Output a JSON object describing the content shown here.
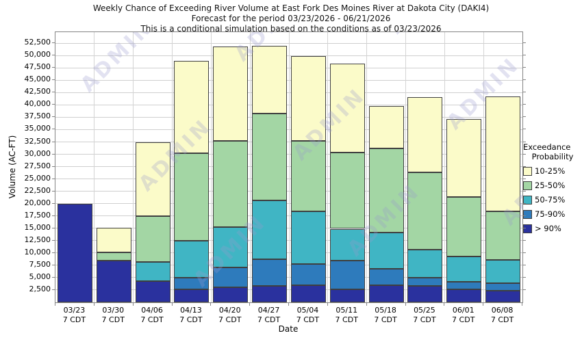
{
  "title": {
    "line1": "Weekly Chance of Exceeding River Volume at East Fork Des Moines River at Dakota City (DAKI4)",
    "line2": "Forecast for the period 03/23/2026 - 06/21/2026",
    "line3": "This is a conditional simulation based on the conditions as of 03/23/2026"
  },
  "axes": {
    "y_label": "Volume (AC-FT)",
    "x_label": "Date",
    "x_sublabel": "7 CDT"
  },
  "legend": {
    "title_line1": "Exceedance",
    "title_line2": "Probability",
    "items": [
      {
        "label": "10-25%",
        "color": "#fbfbc9"
      },
      {
        "label": "25-50%",
        "color": "#a3d6a4"
      },
      {
        "label": "50-75%",
        "color": "#40b5c4"
      },
      {
        "label": "75-90%",
        "color": "#2e7bbc"
      },
      {
        "label": "> 90%",
        "color": "#2a319e"
      }
    ]
  },
  "watermark": {
    "text": "ADMIN"
  },
  "chart_data": {
    "type": "bar",
    "stacked": true,
    "title": "Weekly Chance of Exceeding River Volume at East Fork Des Moines River at Dakota City (DAKI4)",
    "subtitle": "Forecast for the period 03/23/2026 - 06/21/2026",
    "note": "This is a conditional simulation based on the conditions as of 03/23/2026",
    "xlabel": "Date",
    "ylabel": "Volume (AC-FT)",
    "ylim": [
      0,
      54750
    ],
    "ytick_step": 2500,
    "ytick_max": 52500,
    "grid": true,
    "legend_position": "right",
    "categories": [
      "03/23",
      "03/30",
      "04/06",
      "04/13",
      "04/20",
      "04/27",
      "05/04",
      "05/11",
      "05/18",
      "05/25",
      "06/01",
      "06/08"
    ],
    "category_sublabel": "7 CDT",
    "series_value_meaning": "cumulative stack top in AC-FT (volume exceeded with at least the series probability); segment height = top minus previous series top",
    "series": [
      {
        "name": "> 90%",
        "color": "#2a319e",
        "tops": [
          20000,
          8500,
          4300,
          2700,
          3100,
          3300,
          3400,
          2700,
          3400,
          3300,
          2700,
          2400
        ]
      },
      {
        "name": "75-90%",
        "color": "#2e7bbc",
        "tops": [
          20000,
          8500,
          4300,
          5000,
          7100,
          8700,
          7800,
          8400,
          6800,
          5000,
          4100,
          3900
        ]
      },
      {
        "name": "50-75%",
        "color": "#40b5c4",
        "tops": [
          20000,
          8500,
          8200,
          12500,
          15200,
          20700,
          18500,
          14900,
          14100,
          10700,
          9300,
          8600
        ]
      },
      {
        "name": "25-50%",
        "color": "#a3d6a4",
        "tops": [
          20000,
          10100,
          17500,
          30200,
          32700,
          38200,
          32700,
          30400,
          31200,
          26300,
          21300,
          18500
        ]
      },
      {
        "name": "10-25%",
        "color": "#fbfbc9",
        "tops": [
          20000,
          15100,
          32500,
          48900,
          51900,
          52000,
          49900,
          48400,
          39800,
          41600,
          37100,
          41700
        ]
      }
    ]
  }
}
